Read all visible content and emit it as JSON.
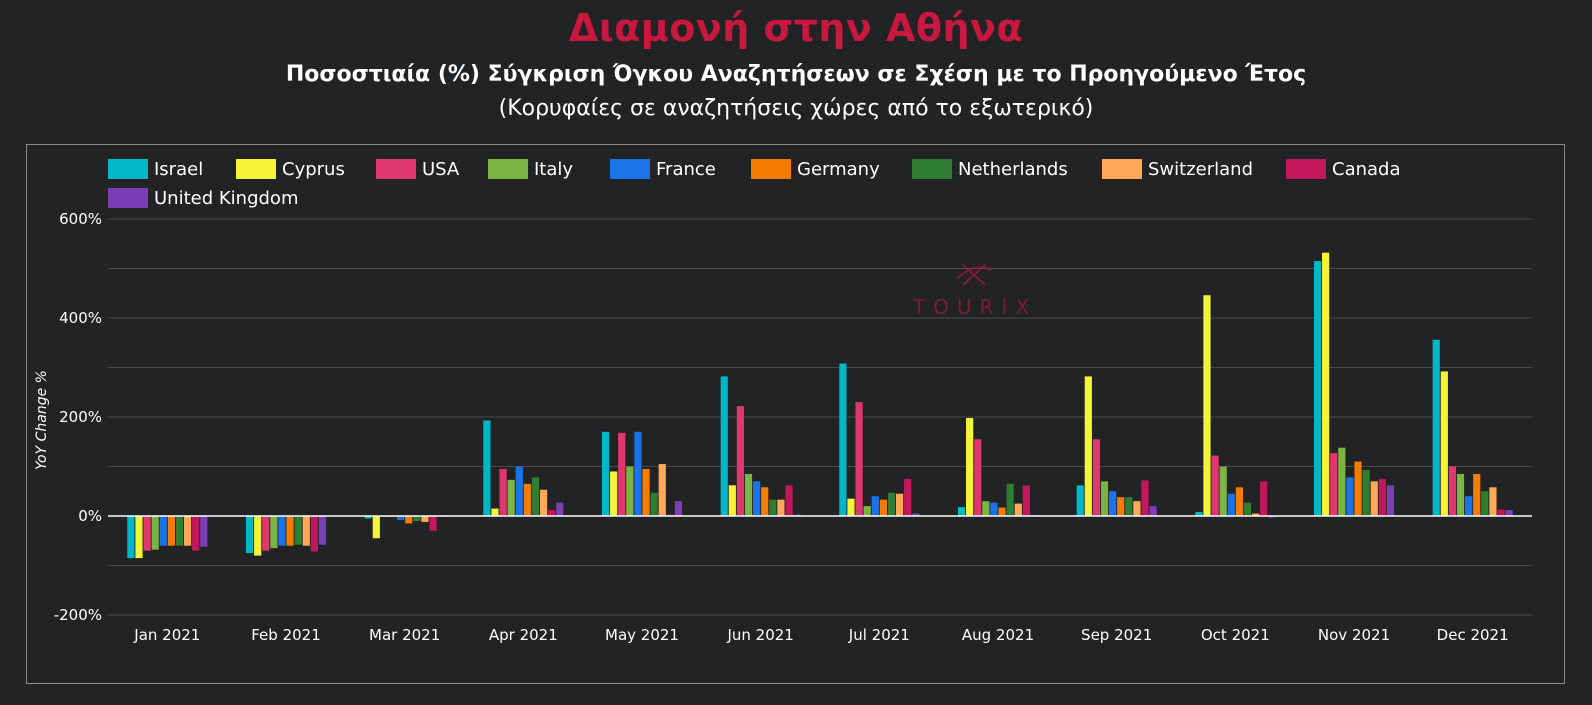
{
  "header": {
    "title": "Διαμονή στην Αθήνα",
    "subtitle": "Ποσοστιαία (%) Σύγκριση Όγκου Αναζητήσεων σε Σχέση με το Προηγούμενο Έτος",
    "subtitle2": "(Κορυφαίες σε αναζητήσεις χώρες από το εξωτερικό)"
  },
  "watermark": {
    "text": "TOURIX"
  },
  "colors": {
    "background": "#222325",
    "title": "#c8183f",
    "axis": "#ffffff",
    "grid": "#4a4b4d"
  },
  "chart_data": {
    "type": "bar",
    "ylabel": "YoY Change %",
    "ylim": [
      -200,
      600
    ],
    "yticks": [
      -200,
      0,
      200,
      400,
      600
    ],
    "ytick_labels": [
      "-200%",
      "0%",
      "200%",
      "400%",
      "600%"
    ],
    "grid": true,
    "legend_position": "top-left",
    "categories": [
      "Jan 2021",
      "Feb 2021",
      "Mar 2021",
      "Apr 2021",
      "May 2021",
      "Jun 2021",
      "Jul 2021",
      "Aug 2021",
      "Sep 2021",
      "Oct 2021",
      "Nov 2021",
      "Dec 2021"
    ],
    "series": [
      {
        "name": "Israel",
        "color": "#00b7c7",
        "values": [
          -85,
          -75,
          -5,
          193,
          170,
          282,
          308,
          18,
          62,
          8,
          515,
          356
        ]
      },
      {
        "name": "Cyprus",
        "color": "#f4f436",
        "values": [
          -85,
          -80,
          -45,
          15,
          90,
          62,
          35,
          198,
          282,
          446,
          532,
          292
        ]
      },
      {
        "name": "USA",
        "color": "#e0376f",
        "values": [
          -70,
          -70,
          0,
          95,
          168,
          222,
          230,
          155,
          155,
          122,
          127,
          100
        ]
      },
      {
        "name": "Italy",
        "color": "#7cb342",
        "values": [
          -68,
          -65,
          0,
          73,
          100,
          85,
          20,
          30,
          70,
          100,
          138,
          85
        ]
      },
      {
        "name": "France",
        "color": "#1a73e8",
        "values": [
          -60,
          -60,
          -8,
          100,
          170,
          70,
          40,
          27,
          50,
          45,
          78,
          40
        ]
      },
      {
        "name": "Germany",
        "color": "#f57c00",
        "values": [
          -60,
          -60,
          -15,
          65,
          95,
          58,
          33,
          17,
          38,
          58,
          110,
          85
        ]
      },
      {
        "name": "Netherlands",
        "color": "#2e7d32",
        "values": [
          -60,
          -58,
          -10,
          78,
          47,
          33,
          47,
          65,
          38,
          27,
          93,
          50
        ]
      },
      {
        "name": "Switzerland",
        "color": "#ffa958",
        "values": [
          -60,
          -60,
          -12,
          53,
          105,
          33,
          45,
          25,
          30,
          5,
          70,
          58
        ]
      },
      {
        "name": "Canada",
        "color": "#c2185b",
        "values": [
          -70,
          -72,
          -30,
          12,
          3,
          62,
          75,
          62,
          72,
          70,
          75,
          13
        ]
      },
      {
        "name": "United Kingdom",
        "color": "#7b3fb5",
        "values": [
          -62,
          -58,
          0,
          27,
          30,
          3,
          5,
          2,
          20,
          -3,
          62,
          12
        ]
      }
    ]
  }
}
